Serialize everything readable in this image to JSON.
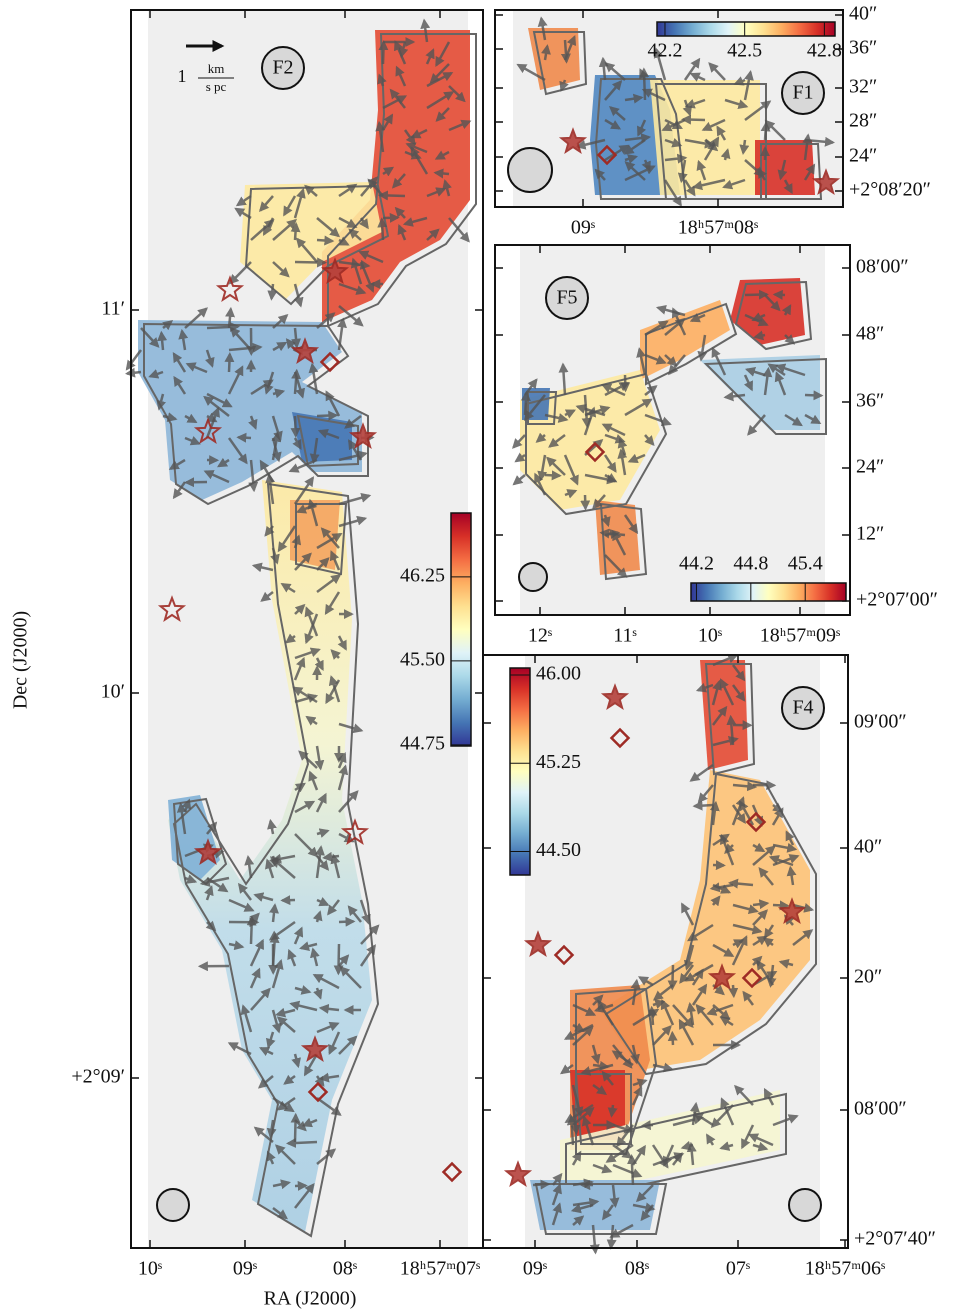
{
  "figure": {
    "x_label": "RA (J2000)",
    "y_label": "Dec (J2000)",
    "scale_bar": {
      "value": "1",
      "numerator": "km",
      "denominator": "s pc"
    },
    "panels": [
      {
        "name": "F2",
        "ra_ticks": [
          "10ˢ",
          "09ˢ",
          "08ˢ",
          "18ʰ57ᵐ07ˢ"
        ],
        "dec_ticks": [
          "11′",
          "10′",
          "+2°09′"
        ],
        "colorbar": {
          "lim": [
            44.74,
            46.82
          ],
          "ticks": [
            {
              "value": 46.25,
              "label": "46.25"
            },
            {
              "value": 45.5,
              "label": "45.50"
            },
            {
              "value": 44.75,
              "label": "44.75"
            }
          ]
        }
      },
      {
        "name": "F1",
        "ra_ticks": [
          "09ˢ",
          "18ʰ57ᵐ08ˢ"
        ],
        "dec_ticks": [
          "40″",
          "36″",
          "32″",
          "28″",
          "24″",
          "+2°08′20″"
        ],
        "colorbar": {
          "lim": [
            42.17,
            42.84
          ],
          "ticks": [
            42.2,
            42.5,
            42.8
          ]
        }
      },
      {
        "name": "F5",
        "ra_ticks": [
          "12ˢ",
          "11ˢ",
          "10ˢ",
          "18ʰ57ᵐ09ˢ"
        ],
        "dec_ticks": [
          "08′00″",
          "48″",
          "36″",
          "24″",
          "12″",
          "+2°07′00″"
        ],
        "colorbar": {
          "lim": [
            44.14,
            45.85
          ],
          "ticks": [
            44.2,
            44.8,
            45.4
          ]
        }
      },
      {
        "name": "F4",
        "ra_ticks": [
          "09ˢ",
          "08ˢ",
          "07ˢ",
          "18ʰ57ᵐ06ˢ"
        ],
        "dec_ticks": [
          "09′00″",
          "40″",
          "20″",
          "08′00″",
          "+2°07′40″"
        ],
        "colorbar": {
          "lim": [
            44.3,
            46.06
          ],
          "ticks": [
            {
              "value": 46,
              "label": "46.00"
            },
            45.25,
            {
              "value": 44.5,
              "label": "44.50"
            }
          ]
        }
      }
    ]
  }
}
